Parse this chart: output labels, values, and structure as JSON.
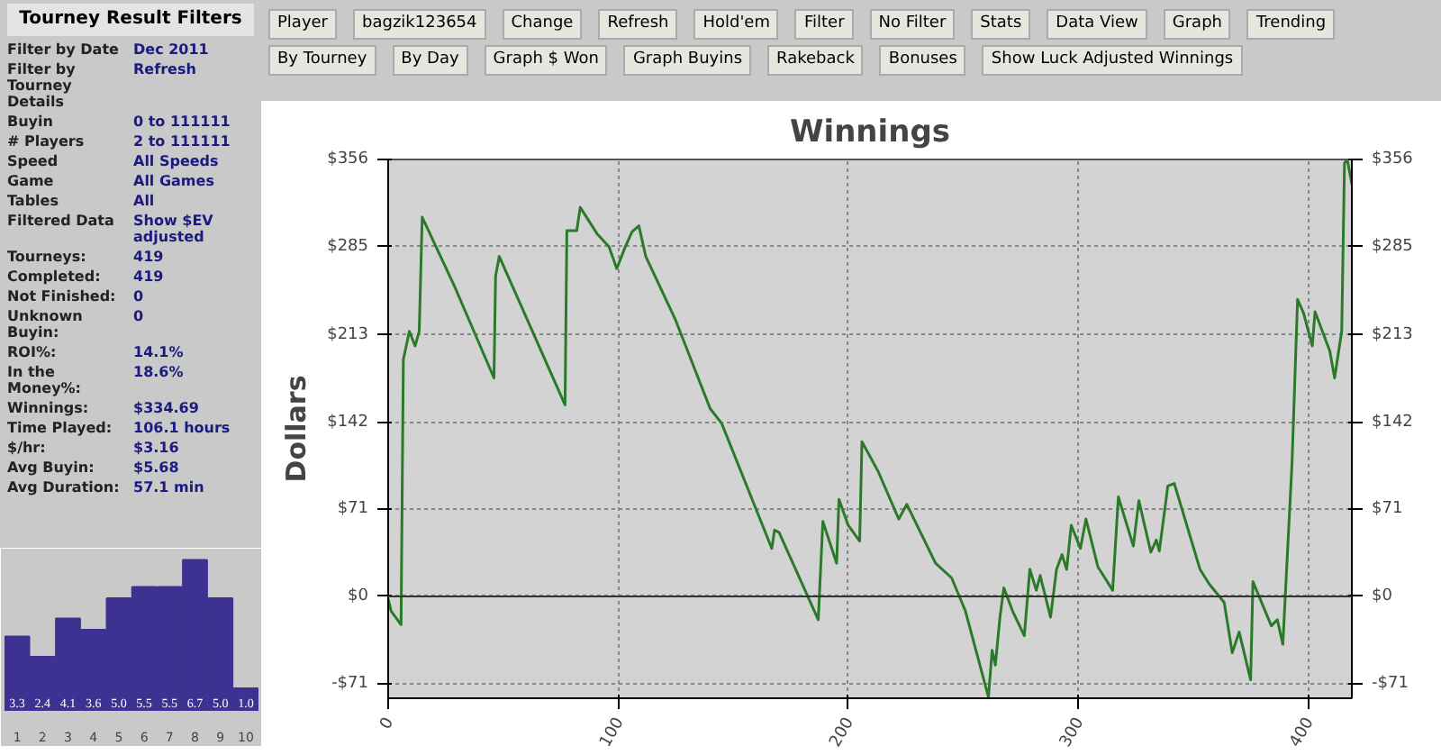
{
  "chart_data": [
    {
      "type": "other",
      "title": "Tourney Result Filters",
      "annotations": [
        "Filter by Date",
        "Dec 2011",
        "Filter by Tourney Details",
        "Refresh",
        "Buyin",
        "0 to 111111",
        "# Players",
        "2 to 111111",
        "Speed",
        "All Speeds",
        "Game",
        "All Games",
        "Tables",
        "All",
        "Filtered Data",
        "Show $EV adjusted",
        "Tourneys:",
        "419",
        "Completed:",
        "419",
        "Not Finished:",
        "0",
        "Unknown Buyin:",
        "0",
        "ROI%:",
        "14.1%",
        "In the Money%:",
        "18.6%",
        "Winnings:",
        "$334.69",
        "Time Played:",
        "106.1 hours",
        "$/hr:",
        "$3.16",
        "Avg Buyin:",
        "$5.68",
        "Avg Duration:",
        "57.1 min"
      ]
    },
    {
      "type": "bar",
      "categories": [
        "1",
        "2",
        "3",
        "4",
        "5",
        "6",
        "7",
        "8",
        "9",
        "10"
      ],
      "values": [
        3.3,
        2.4,
        4.1,
        3.6,
        5.0,
        5.5,
        5.5,
        6.7,
        5.0,
        1.0
      ],
      "value_labels": [
        "3.3",
        "2.4",
        "4.1",
        "3.6",
        "5.0",
        "5.5",
        "5.5",
        "6.7",
        "5.0",
        "1.0"
      ],
      "color": "#3d3191"
    },
    {
      "type": "other",
      "annotations": [
        "Player",
        "bagzik123654",
        "Change",
        "Refresh",
        "Hold'em",
        "Filter",
        "No Filter",
        "Stats",
        "Data View",
        "Graph",
        "Trending",
        "By Tourney",
        "By Day",
        "Graph $ Won",
        "Graph Buyins",
        "Rakeback",
        "Bonuses",
        "Show Luck Adjusted Winnings"
      ]
    },
    {
      "type": "line",
      "title": "Winnings",
      "ylabel": "Dollars",
      "grid": true,
      "xlim": [
        0,
        419
      ],
      "xticks": [
        0,
        100,
        200,
        300,
        400
      ],
      "ylim": [
        -83,
        356
      ],
      "yticks": [
        {
          "value": -71,
          "label": "-$71"
        },
        {
          "value": 0,
          "label": "$0"
        },
        {
          "value": 71,
          "label": "$71"
        },
        {
          "value": 142,
          "label": "$142"
        },
        {
          "value": 213,
          "label": "$213"
        },
        {
          "value": 285,
          "label": "$285"
        },
        {
          "value": 356,
          "label": "$356"
        }
      ],
      "y2lim": [
        -83,
        356
      ],
      "y2ticks": [
        {
          "value": -71,
          "label": "-$71"
        },
        {
          "value": 0,
          "label": "$0"
        },
        {
          "value": 71,
          "label": "$71"
        },
        {
          "value": 142,
          "label": "$142"
        },
        {
          "value": 213,
          "label": "$213"
        },
        {
          "value": 285,
          "label": "$285"
        },
        {
          "value": 356,
          "label": "$356"
        }
      ],
      "ref_lines": [
        {
          "axis": "y",
          "value": 0,
          "color": "#333333"
        }
      ],
      "x": [
        0,
        1.3,
        5.6,
        6.6,
        9.2,
        11.7,
        13.5,
        14.8,
        29,
        46,
        46.7,
        48.3,
        76.9,
        77.7,
        82,
        83.5,
        91,
        96,
        99.4,
        102.7,
        106,
        109,
        112,
        125,
        140,
        145,
        166.8,
        168,
        170,
        187,
        189,
        195,
        196,
        200,
        205,
        206,
        213,
        222,
        225.5,
        238,
        245,
        251,
        261,
        262.6,
        264,
        266,
        267.7,
        271.5,
        276.6,
        279,
        281.8,
        283.5,
        288,
        290.6,
        293,
        295,
        297,
        301,
        303.4,
        308.6,
        315,
        317.5,
        324,
        326.4,
        331.6,
        334,
        335.3,
        339,
        341.8,
        353,
        357,
        363.5,
        367,
        370,
        375,
        376,
        384,
        386.6,
        389,
        390,
        393,
        395.4,
        398,
        401.8,
        403,
        409.4,
        411.5,
        414.6,
        415.8,
        417,
        419
      ],
      "series": [
        {
          "color": "#2a7a2a",
          "values": [
            -2,
            -12,
            -23,
            193,
            216,
            204,
            216,
            309,
            252,
            178,
            261,
            277,
            156,
            298,
            298,
            317,
            295,
            285,
            267,
            283,
            297,
            302,
            277,
            225,
            153,
            141,
            39,
            54,
            52,
            -19,
            61,
            27,
            79,
            58,
            45,
            126,
            102,
            63,
            75,
            27,
            15,
            -12,
            -82,
            -44,
            -56,
            -17,
            7,
            -12,
            -32,
            22,
            5,
            17,
            -17,
            22,
            34,
            22,
            58,
            39,
            63,
            24,
            5,
            81,
            41,
            78,
            36,
            46,
            37,
            90,
            92,
            22,
            10,
            -5,
            -46,
            -29,
            -68,
            12,
            -24,
            -19,
            -39,
            -2,
            109,
            242,
            231,
            204,
            232,
            200,
            178,
            216,
            353,
            356,
            336
          ]
        }
      ]
    }
  ]
}
